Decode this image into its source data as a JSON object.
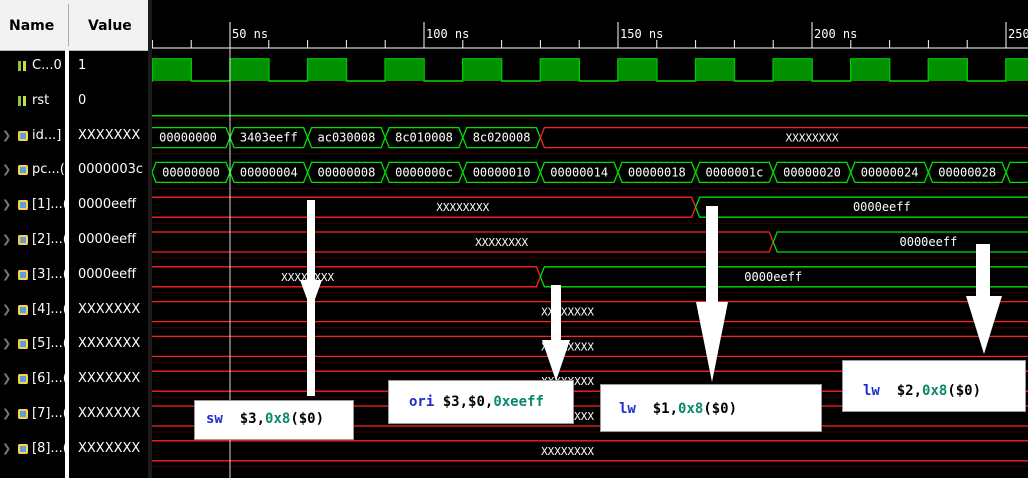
{
  "header": {
    "name_label": "Name",
    "value_label": "Value"
  },
  "signals": [
    {
      "name": "C...0",
      "value": "1",
      "kind": "bit",
      "expandable": false
    },
    {
      "name": "rst",
      "value": "0",
      "kind": "bit",
      "expandable": false
    },
    {
      "name": "id...]",
      "value": "XXXXXXX",
      "kind": "bus",
      "expandable": true
    },
    {
      "name": "pc...(",
      "value": "0000003c",
      "kind": "bus",
      "expandable": true
    },
    {
      "name": "[1]...(",
      "value": "0000eeff",
      "kind": "bus",
      "expandable": true
    },
    {
      "name": "[2]...(",
      "value": "0000eeff",
      "kind": "bus",
      "expandable": true
    },
    {
      "name": "[3]...(",
      "value": "0000eeff",
      "kind": "bus",
      "expandable": true
    },
    {
      "name": "[4]...(",
      "value": "XXXXXXX",
      "kind": "bus",
      "expandable": true
    },
    {
      "name": "[5]...(",
      "value": "XXXXXXX",
      "kind": "bus",
      "expandable": true
    },
    {
      "name": "[6]...(",
      "value": "XXXXXXX",
      "kind": "bus",
      "expandable": true
    },
    {
      "name": "[7]...(",
      "value": "XXXXXXX",
      "kind": "bus",
      "expandable": true
    },
    {
      "name": "[8]...(",
      "value": "XXXXXXX",
      "kind": "bus",
      "expandable": true
    }
  ],
  "timeline": {
    "ticks": [
      "50 ns",
      "100 ns",
      "150 ns",
      "200 ns",
      "250"
    ]
  },
  "waves": {
    "inst": [
      "00000000",
      "3403eeff",
      "ac030008",
      "8c010008",
      "8c020008",
      "XXXXXXXX"
    ],
    "pc": [
      "00000000",
      "00000004",
      "00000008",
      "0000000c",
      "00000010",
      "00000014",
      "00000018",
      "0000001c",
      "00000020",
      "00000024",
      "00000028"
    ],
    "r1": [
      "XXXXXXXX",
      "0000eeff"
    ],
    "r2": [
      "XXXXXXXX",
      "0000eeff"
    ],
    "r3": [
      "XXXXXXXX",
      "0000eeff"
    ],
    "r4": "XXXXXXXX",
    "r5": "XXXXXXXX",
    "r6": "XXXXXXXX",
    "r7": "XXXXXXXX",
    "r8": "XXXXXXXX"
  },
  "annotations": {
    "sw": {
      "op": "sw",
      "reg": "$3,",
      "num": "0x8",
      "tail": "($0)"
    },
    "ori": {
      "op": "ori",
      "reg": "$3,$0,",
      "num": "0xeeff",
      "tail": ""
    },
    "lw1": {
      "op": "lw",
      "reg": "$1,",
      "num": "0x8",
      "tail": "($0)"
    },
    "lw2": {
      "op": "lw",
      "reg": "$2,",
      "num": "0x8",
      "tail": "($0)"
    }
  },
  "colors": {
    "wave": "#00e000",
    "x": "#ff2020",
    "bg": "#000000"
  }
}
